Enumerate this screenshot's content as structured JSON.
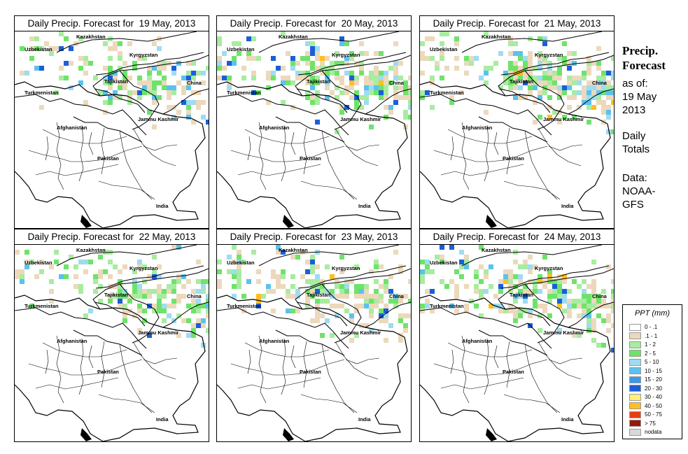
{
  "panels": [
    {
      "title": "Daily Precip. Forecast for  19 May, 2013"
    },
    {
      "title": "Daily Precip. Forecast for  20 May, 2013"
    },
    {
      "title": "Daily Precip. Forecast for  21 May, 2013"
    },
    {
      "title": "Daily Precip. Forecast for  22 May, 2013"
    },
    {
      "title": "Daily Precip. Forecast for  23 May, 2013"
    },
    {
      "title": "Daily Precip. Forecast for  24 May, 2013"
    }
  ],
  "map_labels": {
    "kazakhstan": "Kazakhstan",
    "uzbekistan": "Uzbekistan",
    "kyrgyzstan": "Kyrgyzstan",
    "tajikistan": "Tajikistan",
    "turkmenistan": "Turkmenistan",
    "china": "China",
    "jammu_kashmir": "Jammu Kashmir",
    "afghanistan": "Afghanistan",
    "pakistan": "Pakistan",
    "india": "India"
  },
  "side": {
    "title_line1": "Precip.",
    "title_line2": "Forecast",
    "asof_line1": "as of:",
    "asof_line2": "19 May",
    "asof_line3": "2013",
    "totals_line1": "Daily",
    "totals_line2": "Totals",
    "data_line1": "Data:",
    "data_line2": "NOAA-",
    "data_line3": "GFS"
  },
  "legend": {
    "title": "PPT (mm)",
    "items": [
      {
        "label": "0 - .1",
        "color": "#ffffff"
      },
      {
        "label": ".1 - 1",
        "color": "#ecd9bc"
      },
      {
        "label": "1 - 2",
        "color": "#a8eca0"
      },
      {
        "label": "2 - 5",
        "color": "#6ee36a"
      },
      {
        "label": "5 - 10",
        "color": "#9edcf2"
      },
      {
        "label": "10 - 15",
        "color": "#5bc2ef"
      },
      {
        "label": "15 - 20",
        "color": "#3a9ae6"
      },
      {
        "label": "20 - 30",
        "color": "#1a5fd8"
      },
      {
        "label": "30 - 40",
        "color": "#fff07a"
      },
      {
        "label": "40 - 50",
        "color": "#ffbe22"
      },
      {
        "label": "50 - 75",
        "color": "#ea3e0b"
      },
      {
        "label": "> 75",
        "color": "#9a1608"
      },
      {
        "label": "nodata",
        "color": "#d8d8d8"
      }
    ]
  }
}
